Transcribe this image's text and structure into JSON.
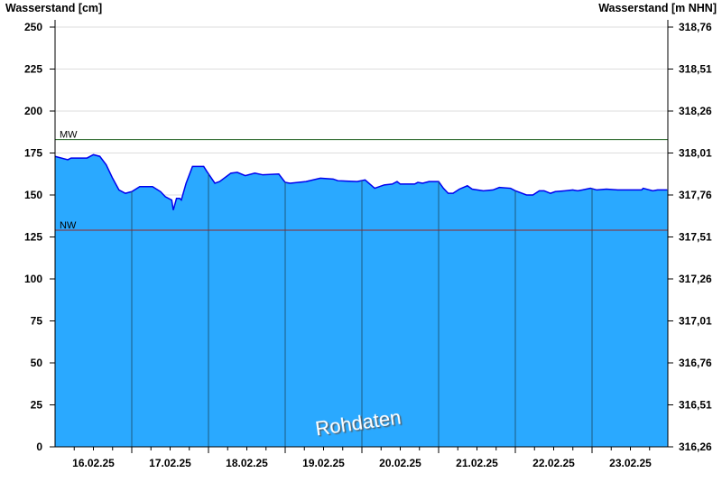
{
  "chart_data": {
    "type": "area",
    "ylabel_left": "Wasserstand [cm]",
    "ylabel_right": "Wasserstand [m NHN]",
    "ylim": [
      0,
      250
    ],
    "yticks_left": [
      "0",
      "25",
      "50",
      "75",
      "100",
      "125",
      "150",
      "175",
      "200",
      "225",
      "250"
    ],
    "yticks_right": [
      "316,26",
      "316,51",
      "316,76",
      "317,01",
      "317,26",
      "317,51",
      "317,76",
      "318,01",
      "318,26",
      "318,51",
      "318,76"
    ],
    "xlim": [
      "2025-02-16T00:00",
      "2025-02-24T00:00"
    ],
    "xticks": [
      "16.02.25",
      "17.02.25",
      "18.02.25",
      "19.02.25",
      "20.02.25",
      "21.02.25",
      "22.02.25",
      "23.02.25"
    ],
    "grid": true,
    "colors": {
      "fill": "#2aa9ff",
      "line": "#0000ee",
      "mw": "#1a7a1a",
      "nw": "#cc2222",
      "daylines": "#1c5a80"
    },
    "reference_lines": [
      {
        "label": "MW",
        "value": 183
      },
      {
        "label": "NW",
        "value": 129
      }
    ],
    "watermark": "Rohdaten",
    "series": [
      {
        "points": [
          [
            "2025-02-16T00:00",
            173
          ],
          [
            "2025-02-16T04:00",
            171
          ],
          [
            "2025-02-16T05:00",
            172
          ],
          [
            "2025-02-16T10:00",
            172
          ],
          [
            "2025-02-16T12:00",
            174
          ],
          [
            "2025-02-16T14:00",
            173
          ],
          [
            "2025-02-16T16:00",
            168
          ],
          [
            "2025-02-16T18:00",
            160
          ],
          [
            "2025-02-16T20:00",
            153
          ],
          [
            "2025-02-16T22:00",
            151
          ],
          [
            "2025-02-17T00:00",
            152
          ],
          [
            "2025-02-17T02:30",
            155
          ],
          [
            "2025-02-17T06:30",
            155
          ],
          [
            "2025-02-17T09:00",
            152
          ],
          [
            "2025-02-17T10:30",
            149
          ],
          [
            "2025-02-17T12:30",
            147
          ],
          [
            "2025-02-17T13:00",
            141
          ],
          [
            "2025-02-17T14:00",
            148
          ],
          [
            "2025-02-17T15:00",
            148
          ],
          [
            "2025-02-17T15:30",
            147
          ],
          [
            "2025-02-17T17:00",
            157
          ],
          [
            "2025-02-17T19:00",
            167
          ],
          [
            "2025-02-17T22:30",
            167
          ],
          [
            "2025-02-17T23:30",
            164
          ],
          [
            "2025-02-18T02:00",
            157
          ],
          [
            "2025-02-18T03:30",
            158
          ],
          [
            "2025-02-18T07:00",
            163
          ],
          [
            "2025-02-18T09:00",
            163.5
          ],
          [
            "2025-02-18T11:30",
            161.5
          ],
          [
            "2025-02-18T14:30",
            163
          ],
          [
            "2025-02-18T17:00",
            162
          ],
          [
            "2025-02-18T22:00",
            162.5
          ],
          [
            "2025-02-19T00:00",
            157.5
          ],
          [
            "2025-02-19T01:30",
            157
          ],
          [
            "2025-02-19T06:30",
            158
          ],
          [
            "2025-02-19T11:00",
            160
          ],
          [
            "2025-02-19T15:00",
            159.5
          ],
          [
            "2025-02-19T16:30",
            158.5
          ],
          [
            "2025-02-19T22:30",
            158
          ],
          [
            "2025-02-20T01:00",
            159
          ],
          [
            "2025-02-20T04:00",
            154
          ],
          [
            "2025-02-20T07:00",
            156
          ],
          [
            "2025-02-20T09:30",
            156.5
          ],
          [
            "2025-02-20T11:00",
            158
          ],
          [
            "2025-02-20T12:00",
            156.5
          ],
          [
            "2025-02-20T16:30",
            156.5
          ],
          [
            "2025-02-20T17:30",
            157.5
          ],
          [
            "2025-02-20T19:00",
            157
          ],
          [
            "2025-02-20T21:00",
            158
          ],
          [
            "2025-02-21T00:00",
            158
          ],
          [
            "2025-02-21T01:30",
            154
          ],
          [
            "2025-02-21T03:00",
            151
          ],
          [
            "2025-02-21T04:30",
            151
          ],
          [
            "2025-02-21T06:30",
            153.5
          ],
          [
            "2025-02-21T09:00",
            155.5
          ],
          [
            "2025-02-21T10:30",
            153.5
          ],
          [
            "2025-02-21T14:00",
            152.5
          ],
          [
            "2025-02-21T17:00",
            153
          ],
          [
            "2025-02-21T19:00",
            154.5
          ],
          [
            "2025-02-21T22:30",
            154
          ],
          [
            "2025-02-22T00:00",
            152.5
          ],
          [
            "2025-02-22T03:30",
            150
          ],
          [
            "2025-02-22T05:30",
            150
          ],
          [
            "2025-02-22T07:30",
            152.5
          ],
          [
            "2025-02-22T09:00",
            152.5
          ],
          [
            "2025-02-22T11:00",
            151
          ],
          [
            "2025-02-22T12:30",
            152
          ],
          [
            "2025-02-22T15:30",
            152.5
          ],
          [
            "2025-02-22T18:00",
            153
          ],
          [
            "2025-02-22T19:30",
            152.5
          ],
          [
            "2025-02-22T21:00",
            153
          ],
          [
            "2025-02-22T23:30",
            154
          ],
          [
            "2025-02-23T01:30",
            153
          ],
          [
            "2025-02-23T04:30",
            153.5
          ],
          [
            "2025-02-23T08:00",
            153
          ],
          [
            "2025-02-23T15:30",
            153
          ],
          [
            "2025-02-23T16:00",
            154
          ],
          [
            "2025-02-23T19:00",
            152.5
          ],
          [
            "2025-02-23T20:30",
            153
          ],
          [
            "2025-02-23T23:30",
            153
          ]
        ]
      }
    ]
  }
}
